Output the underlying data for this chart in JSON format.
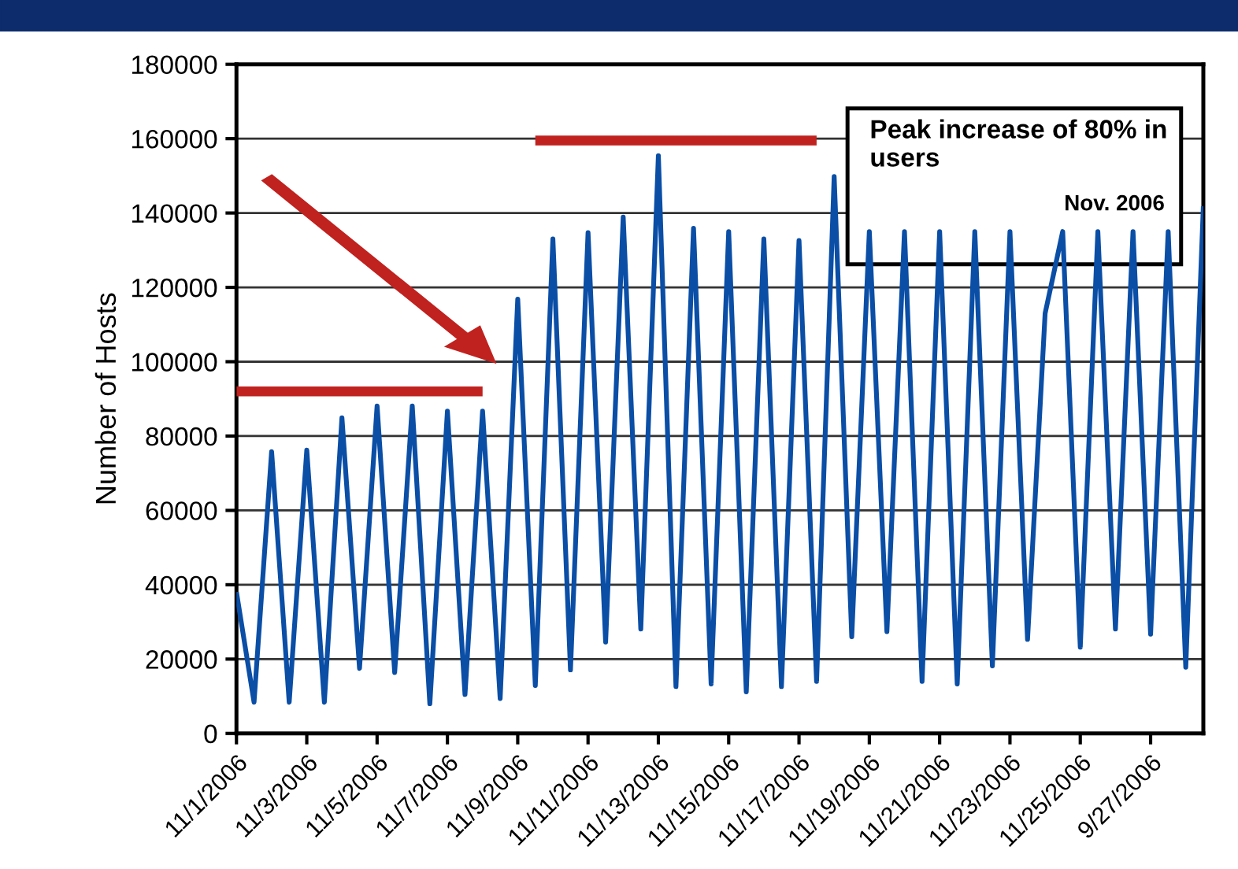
{
  "chart_data": {
    "type": "line",
    "ylabel": "Number of Hosts",
    "categories": [
      "11/1/2006",
      null,
      null,
      null,
      "11/3/2006",
      null,
      null,
      null,
      "11/5/2006",
      null,
      null,
      null,
      "11/7/2006",
      null,
      null,
      null,
      "11/9/2006",
      null,
      null,
      null,
      "11/11/2006",
      null,
      null,
      null,
      "11/13/2006",
      null,
      null,
      null,
      "11/15/2006",
      null,
      null,
      null,
      "11/17/2006",
      null,
      null,
      null,
      "11/19/2006",
      null,
      null,
      null,
      "11/21/2006",
      null,
      null,
      null,
      "11/23/2006",
      null,
      null,
      null,
      "11/25/2006",
      null,
      null,
      null,
      "9/27/2006",
      null,
      null,
      null
    ],
    "ylim": [
      0,
      180000
    ],
    "yticks": [
      0,
      20000,
      40000,
      60000,
      80000,
      100000,
      120000,
      140000,
      160000,
      180000
    ],
    "grid": "y",
    "legend": false,
    "marker": "none",
    "line_style": "solid",
    "series": [
      {
        "color": "#0a4ea6",
        "values": [
          38000,
          8400,
          75800,
          8400,
          76200,
          8400,
          84900,
          17500,
          88100,
          16400,
          88100,
          8000,
          86700,
          10500,
          86700,
          9400,
          116800,
          12900,
          133000,
          17100,
          134700,
          24600,
          138900,
          28100,
          155400,
          12600,
          135900,
          13300,
          135000,
          11200,
          133000,
          12600,
          132600,
          14000,
          149800,
          26000,
          135000,
          27400,
          135000,
          14000,
          135000,
          13300,
          135000,
          18200,
          135000,
          25300,
          113000,
          135000,
          23200,
          135000,
          28100,
          135000,
          26700,
          135000,
          17800,
          141800
        ]
      },
      {
        "type": "line",
        "color": "#c0221f",
        "values": [
          92000,
          92000,
          92000,
          92000,
          92000,
          92000,
          92000,
          92000,
          92000,
          92000,
          92000,
          92000,
          92000,
          92000,
          92000,
          null,
          null,
          null,
          null,
          null,
          null,
          null,
          null,
          null,
          null,
          null,
          null,
          null,
          null,
          null,
          null,
          null,
          null,
          null,
          null,
          null,
          null,
          null,
          null,
          null,
          null,
          null,
          null,
          null,
          null,
          null,
          null,
          null,
          null,
          null,
          null,
          null,
          null,
          null,
          null,
          null
        ]
      },
      {
        "type": "line",
        "color": "#c0221f",
        "values": [
          null,
          null,
          null,
          null,
          null,
          null,
          null,
          null,
          null,
          null,
          null,
          null,
          null,
          null,
          null,
          null,
          null,
          159500,
          159500,
          159500,
          159500,
          159500,
          159500,
          159500,
          159500,
          159500,
          159500,
          159500,
          159500,
          159500,
          159500,
          159500,
          159500,
          159500,
          null,
          null,
          null,
          null,
          null,
          null,
          null,
          null,
          null,
          null,
          null,
          null,
          null,
          null,
          null,
          null,
          null,
          null,
          null,
          null,
          null,
          null
        ]
      }
    ],
    "annotations": [
      "Peak increase of 80% in users",
      "Nov. 2006"
    ]
  }
}
